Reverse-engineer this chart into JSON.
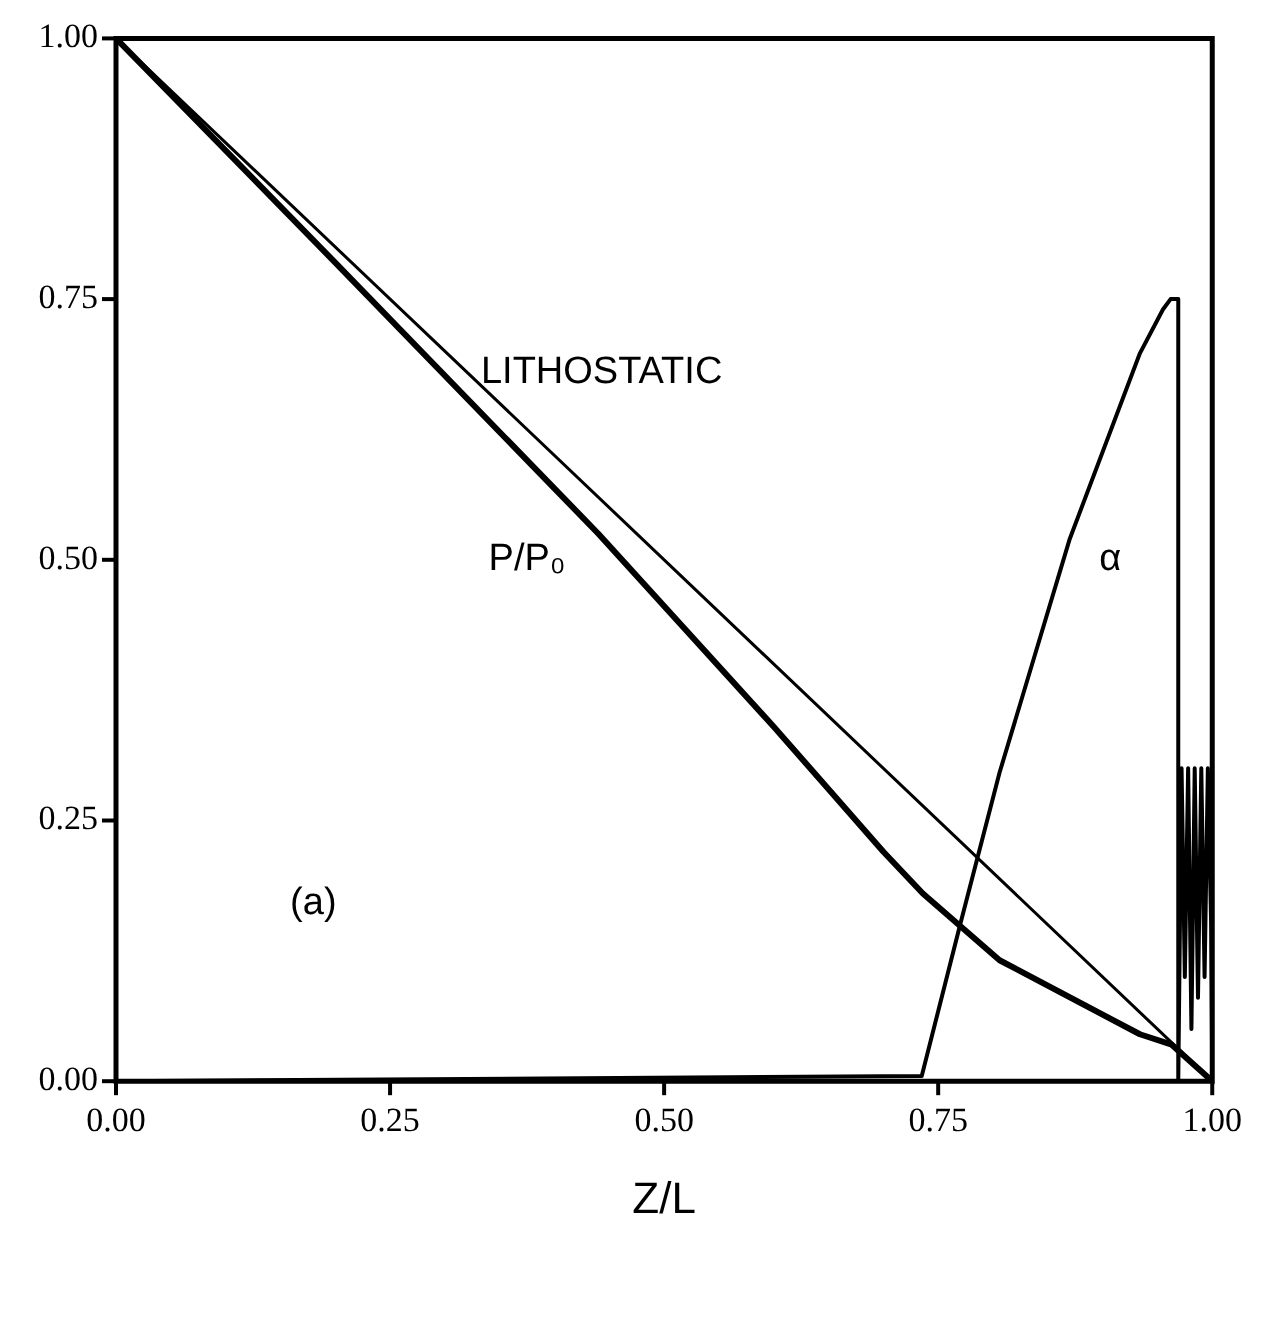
{
  "chart_data": {
    "type": "line",
    "xlabel": "Z/L",
    "xlim": [
      0,
      1
    ],
    "xticks": [
      {
        "value": 0,
        "label": "0.00"
      },
      {
        "value": 0.25,
        "label": "0.25"
      },
      {
        "value": 0.5,
        "label": "0.50"
      },
      {
        "value": 0.75,
        "label": "0.75"
      },
      {
        "value": 1,
        "label": "1.00"
      }
    ],
    "ylim": [
      0,
      1
    ],
    "yticks": [
      {
        "value": 0,
        "label": "0.00"
      },
      {
        "value": 0.25,
        "label": "0.25"
      },
      {
        "value": 0.5,
        "label": "0.50"
      },
      {
        "value": 0.75,
        "label": "0.75"
      },
      {
        "value": 1,
        "label": "1.00"
      }
    ],
    "grid": false,
    "legend": false,
    "marker": "none",
    "line_style": "solid",
    "series": [
      {
        "name": "LITHOSTATIC",
        "color": "#000000",
        "x": [
          0,
          1
        ],
        "values": [
          1,
          0
        ]
      },
      {
        "name": "P/P₀",
        "color": "#000000",
        "x": [
          0,
          0.2,
          0.44,
          0.6,
          0.7,
          0.736,
          0.806,
          0.934,
          0.963,
          1
        ],
        "values": [
          1,
          0.785,
          0.525,
          0.34,
          0.22,
          0.18,
          0.116,
          0.045,
          0.035,
          0
        ]
      },
      {
        "name": "α",
        "color": "#000000",
        "x": [
          0,
          0.735,
          0.77,
          0.806,
          0.87,
          0.934,
          0.955,
          0.962,
          0.969,
          0.969,
          0.972,
          0.975,
          0.978,
          0.981,
          0.984,
          0.987,
          0.99,
          0.993,
          0.996,
          0.999,
          1
        ],
        "values": [
          0,
          0.005,
          0.15,
          0.296,
          0.52,
          0.698,
          0.74,
          0.75,
          0.75,
          0,
          0.3,
          0.1,
          0.3,
          0.05,
          0.3,
          0.08,
          0.3,
          0.1,
          0.3,
          0.15,
          0
        ]
      }
    ],
    "annotations": [
      "(a)"
    ]
  }
}
